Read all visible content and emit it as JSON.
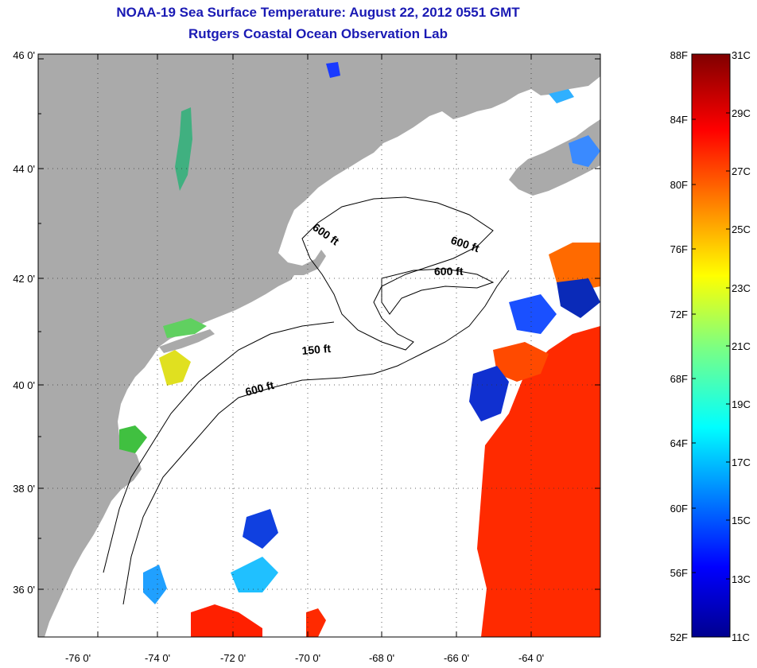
{
  "header": {
    "title": "NOAA-19 Sea Surface Temperature:  August 22, 2012 0551 GMT",
    "subtitle": "Rutgers Coastal Ocean Observation Lab"
  },
  "map": {
    "lat_labels": [
      "46 0'",
      "44 0'",
      "42 0'",
      "40 0'",
      "38 0'",
      "36 0'"
    ],
    "lon_labels": [
      "-76 0'",
      "-74 0'",
      "-72 0'",
      "-70 0'",
      "-68 0'",
      "-66 0'",
      "-64 0'"
    ],
    "contour_labels": [
      "600 ft",
      "600 ft",
      "600 ft",
      "150 ft",
      "600 ft"
    ],
    "colors": {
      "land": "#aaaaaa",
      "ocean": "#ffffff",
      "title": "#1a1ab4"
    }
  },
  "colorbar": {
    "f_labels": [
      "88F",
      "84F",
      "80F",
      "76F",
      "72F",
      "68F",
      "64F",
      "60F",
      "56F",
      "52F"
    ],
    "c_labels": [
      "31C",
      "29C",
      "27C",
      "25C",
      "23C",
      "21C",
      "19C",
      "17C",
      "15C",
      "13C",
      "11C"
    ]
  }
}
